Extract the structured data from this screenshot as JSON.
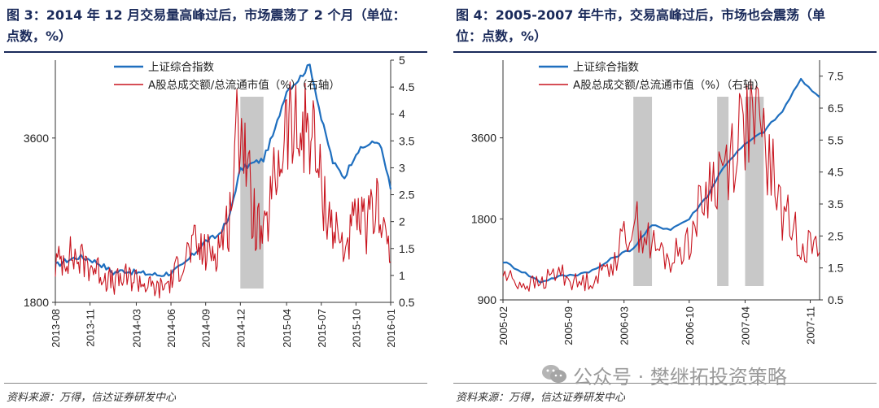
{
  "panels": [
    {
      "title_line1": "图 3：2014 年 12 月交易量高峰过后，市场震荡了 2 个月（单位：",
      "title_line2": "点数，%）",
      "source": "资料来源：万得，信达证券研发中心"
    },
    {
      "title_line1": "图 4：2005-2007 年牛市，交易高峰过后，市场也会震荡（单",
      "title_line2": "位：点数，%）",
      "source": "资料来源：万得，信达证券研发中心"
    }
  ],
  "watermark": "公众号 · 樊继拓投资策略",
  "chart_data": [
    {
      "type": "line",
      "x": [
        "2013-08",
        "2013-09",
        "2013-10",
        "2013-11",
        "2013-12",
        "2014-01",
        "2014-02",
        "2014-03",
        "2014-04",
        "2014-05",
        "2014-06",
        "2014-07",
        "2014-08",
        "2014-09",
        "2014-10",
        "2014-11",
        "2014-12",
        "2015-01",
        "2015-02",
        "2015-03",
        "2015-04",
        "2015-05",
        "2015-06",
        "2015-07",
        "2015-08",
        "2015-09",
        "2015-10",
        "2015-11",
        "2015-12",
        "2016-01"
      ],
      "x_ticks": [
        "2013-08",
        "2013-11",
        "2014-03",
        "2014-06",
        "2014-09",
        "2014-12",
        "2015-04",
        "2015-07",
        "2015-10",
        "2016-01"
      ],
      "series": [
        {
          "name": "上证综合指数",
          "axis": "left",
          "color": "#1f6fbf",
          "values": [
            2100,
            2150,
            2180,
            2160,
            2110,
            2040,
            2060,
            2040,
            2030,
            2020,
            2040,
            2100,
            2210,
            2330,
            2380,
            2550,
            3150,
            3230,
            3290,
            3720,
            4400,
            4600,
            4900,
            3900,
            3250,
            3050,
            3380,
            3500,
            3550,
            2900
          ]
        },
        {
          "name": "A股总成交额/总流通市值（%）（右轴）",
          "axis": "right",
          "color": "#c8141e",
          "values": [
            1.2,
            1.4,
            1.3,
            1.2,
            1.05,
            0.85,
            0.95,
            0.95,
            0.8,
            0.75,
            0.9,
            1.3,
            1.55,
            1.4,
            1.5,
            2.0,
            4.2,
            2.2,
            1.6,
            2.8,
            3.8,
            3.5,
            3.9,
            2.6,
            1.9,
            1.5,
            2.0,
            1.9,
            2.4,
            1.25
          ]
        }
      ],
      "shaded_ranges": [
        [
          "2014-12",
          "2015-02"
        ]
      ],
      "y_left": {
        "ticks": [
          1800,
          3600
        ],
        "range": [
          1800,
          5000
        ]
      },
      "y_right": {
        "ticks": [
          0.5,
          1,
          1.5,
          2,
          2.5,
          3,
          3.5,
          4,
          4.5,
          5
        ],
        "range": [
          0.5,
          5
        ]
      },
      "legend_position": "top-center"
    },
    {
      "type": "line",
      "x": [
        "2005-02",
        "2005-04",
        "2005-06",
        "2005-08",
        "2005-10",
        "2005-12",
        "2006-02",
        "2006-04",
        "2006-06",
        "2006-08",
        "2006-10",
        "2006-12",
        "2007-02",
        "2007-04",
        "2007-06",
        "2007-08",
        "2007-10",
        "2007-12"
      ],
      "x_ticks": [
        "2005-02",
        "2005-09",
        "2006-03",
        "2006-10",
        "2007-04",
        "2007-11"
      ],
      "series": [
        {
          "name": "上证综合指数",
          "axis": "left",
          "color": "#1f6fbf",
          "values": [
            1250,
            1150,
            1050,
            1100,
            1120,
            1170,
            1300,
            1400,
            1700,
            1650,
            1800,
            2200,
            2900,
            3400,
            3800,
            4500,
            5900,
            5100
          ]
        },
        {
          "name": "A股总成交额/总流通市值（%）（右轴）",
          "axis": "right",
          "color": "#c8141e",
          "values": [
            1.3,
            1.0,
            1.0,
            1.4,
            1.0,
            1.2,
            1.8,
            3.0,
            2.2,
            1.7,
            2.4,
            4.0,
            4.8,
            6.2,
            5.5,
            3.2,
            2.4,
            2.0
          ]
        }
      ],
      "shaded_ranges": [
        [
          "2006-04",
          "2006-06"
        ],
        [
          "2007-01",
          "2007-02"
        ],
        [
          "2007-04",
          "2007-06"
        ]
      ],
      "y_left": {
        "ticks": [
          900,
          1800,
          3600
        ],
        "range": [
          900,
          7000
        ]
      },
      "y_right": {
        "ticks": [
          0.5,
          1.5,
          2.5,
          3.5,
          4.5,
          5.5,
          6.5,
          7.5
        ],
        "range": [
          0.5,
          8
        ]
      },
      "legend_position": "top-center"
    }
  ]
}
